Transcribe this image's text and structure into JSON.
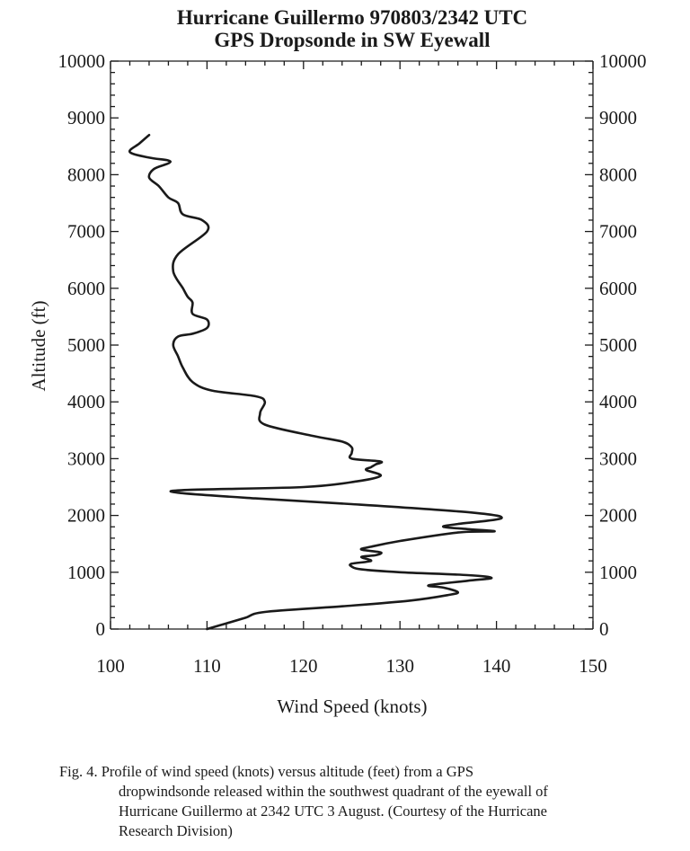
{
  "chart_data": {
    "type": "line",
    "title": "Hurricane Guillermo 970803/2342 UTC",
    "subtitle": "GPS Dropsonde in SW Eyewall",
    "xlabel": "Wind Speed (knots)",
    "ylabel": "Altitude (ft)",
    "xlim": [
      100,
      150
    ],
    "ylim": [
      0,
      10000
    ],
    "x_ticks": [
      "100",
      "110",
      "120",
      "130",
      "140",
      "150"
    ],
    "y_ticks": [
      "0",
      "1000",
      "2000",
      "3000",
      "4000",
      "5000",
      "6000",
      "7000",
      "8000",
      "9000",
      "10000"
    ],
    "grid": false,
    "series": [
      {
        "points": [
          [
            110,
            0
          ],
          [
            112,
            100
          ],
          [
            114,
            200
          ],
          [
            116,
            300
          ],
          [
            124,
            400
          ],
          [
            131,
            500
          ],
          [
            135,
            600
          ],
          [
            136,
            650
          ],
          [
            134.5,
            730
          ],
          [
            133,
            770
          ],
          [
            137,
            850
          ],
          [
            139.5,
            900
          ],
          [
            137,
            950
          ],
          [
            130,
            1000
          ],
          [
            126,
            1050
          ],
          [
            125,
            1100
          ],
          [
            125,
            1150
          ],
          [
            127,
            1200
          ],
          [
            126,
            1270
          ],
          [
            127.5,
            1300
          ],
          [
            128,
            1350
          ],
          [
            126,
            1400
          ],
          [
            127,
            1450
          ],
          [
            130,
            1550
          ],
          [
            136,
            1700
          ],
          [
            139.8,
            1720
          ],
          [
            137,
            1760
          ],
          [
            134.5,
            1800
          ],
          [
            136,
            1850
          ],
          [
            140.5,
            1950
          ],
          [
            137.5,
            2050
          ],
          [
            125,
            2200
          ],
          [
            115,
            2300
          ],
          [
            107,
            2400
          ],
          [
            108,
            2450
          ],
          [
            120,
            2500
          ],
          [
            125.5,
            2600
          ],
          [
            128,
            2700
          ],
          [
            126.5,
            2800
          ],
          [
            127,
            2850
          ],
          [
            127.5,
            2900
          ],
          [
            128,
            2950
          ],
          [
            125,
            3000
          ],
          [
            125,
            3100
          ],
          [
            125,
            3200
          ],
          [
            124,
            3300
          ],
          [
            121,
            3400
          ],
          [
            116,
            3600
          ],
          [
            115.5,
            3800
          ],
          [
            116,
            4000
          ],
          [
            115,
            4100
          ],
          [
            110.5,
            4200
          ],
          [
            108.5,
            4350
          ],
          [
            107.5,
            4600
          ],
          [
            107,
            4800
          ],
          [
            106.5,
            5000
          ],
          [
            107,
            5150
          ],
          [
            108.5,
            5200
          ],
          [
            110,
            5300
          ],
          [
            110,
            5450
          ],
          [
            108.5,
            5550
          ],
          [
            108.5,
            5750
          ],
          [
            108,
            5850
          ],
          [
            107.5,
            6000
          ],
          [
            106.5,
            6300
          ],
          [
            107,
            6600
          ],
          [
            110,
            7000
          ],
          [
            109.5,
            7200
          ],
          [
            107.5,
            7300
          ],
          [
            107,
            7500
          ],
          [
            106,
            7600
          ],
          [
            105,
            7800
          ],
          [
            104,
            7950
          ],
          [
            104.5,
            8100
          ],
          [
            106,
            8200
          ],
          [
            106,
            8250
          ],
          [
            104,
            8300
          ],
          [
            102,
            8400
          ],
          [
            103,
            8550
          ],
          [
            104,
            8700
          ]
        ]
      }
    ]
  },
  "caption": {
    "line1": "Fig. 4.  Profile of wind speed (knots) versus altitude (feet) from a GPS",
    "line2": "dropwindsonde released within the southwest quadrant of the eyewall of",
    "line3": "Hurricane Guillermo at 2342 UTC 3 August.  (Courtesy of the Hurricane",
    "line4": "Research  Division)"
  },
  "colors": {
    "ink": "#1a1a1a",
    "background": "#ffffff"
  }
}
